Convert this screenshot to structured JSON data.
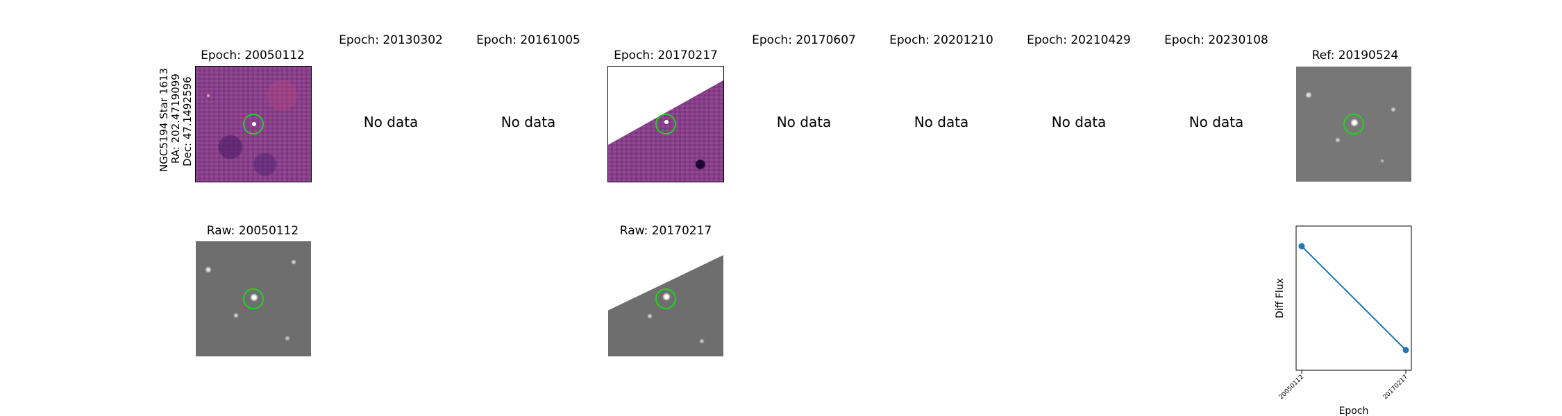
{
  "row_label": {
    "line1": "NGC5194 Star 1613",
    "line2": "RA: 202.4719099",
    "line3": "Dec: 47.1492596"
  },
  "epochs": [
    {
      "title": "Epoch: 20050112",
      "has_data": true
    },
    {
      "title": "Epoch: 20130302",
      "has_data": false
    },
    {
      "title": "Epoch: 20161005",
      "has_data": false
    },
    {
      "title": "Epoch: 20170217",
      "has_data": true
    },
    {
      "title": "Epoch: 20170607",
      "has_data": false
    },
    {
      "title": "Epoch: 20201210",
      "has_data": false
    },
    {
      "title": "Epoch: 20210429",
      "has_data": false
    },
    {
      "title": "Epoch: 20230108",
      "has_data": false
    }
  ],
  "no_data_text": "No data",
  "ref": {
    "title": "Ref: 20190524"
  },
  "raw": [
    {
      "title": "Raw: 20050112"
    },
    {
      "title": "Raw: 20170217"
    }
  ],
  "colors": {
    "diff_bg": "#8a3a8c",
    "raw_bg": "#6e6e6e",
    "circle": "#1fd41f",
    "line": "#1f77b4"
  },
  "chart_data": {
    "type": "line",
    "x": [
      "20050112",
      "20170217"
    ],
    "y": [
      0.86,
      0.14
    ],
    "ylim": [
      0,
      1
    ],
    "xlabel": "Epoch",
    "ylabel": "Diff Flux",
    "title": "",
    "grid": false
  }
}
